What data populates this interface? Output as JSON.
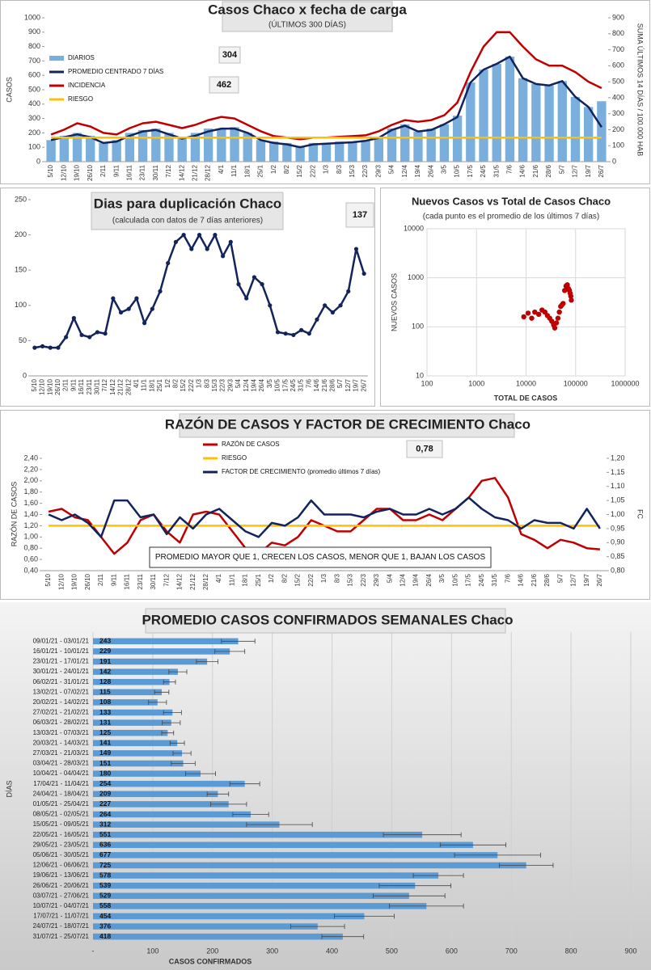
{
  "chart_data": [
    {
      "type": "combo",
      "title": "Casos  Chaco  x fecha de carga",
      "subtitle": "(ÚLTIMOS 300 DÍAS)",
      "ylabel": "CASOS",
      "y2label": "SUMA  ÚLTIMOS 14 DÍAS / 100.000 HAB",
      "categories": [
        "5/10",
        "12/10",
        "19/10",
        "26/10",
        "2/11",
        "9/11",
        "16/11",
        "23/11",
        "30/11",
        "7/12",
        "14/12",
        "21/12",
        "28/12",
        "4/1",
        "11/1",
        "18/1",
        "25/1",
        "1/2",
        "8/2",
        "15/2",
        "22/2",
        "1/3",
        "8/3",
        "15/3",
        "22/3",
        "29/3",
        "5/4",
        "12/4",
        "19/4",
        "26/4",
        "3/5",
        "10/5",
        "17/5",
        "24/5",
        "31/5",
        "7/6",
        "14/6",
        "21/6",
        "28/6",
        "5/7",
        "12/7",
        "19/7",
        "26/7"
      ],
      "series": [
        {
          "name": "DIARIOS",
          "kind": "bar",
          "color": "#7aaedc",
          "values": [
            150,
            180,
            200,
            180,
            130,
            150,
            200,
            220,
            230,
            200,
            170,
            200,
            230,
            230,
            240,
            200,
            150,
            140,
            130,
            110,
            130,
            130,
            140,
            140,
            150,
            170,
            230,
            260,
            210,
            230,
            260,
            320,
            550,
            640,
            680,
            730,
            580,
            540,
            530,
            560,
            450,
            380,
            420
          ]
        },
        {
          "name": "PROMEDIO CENTRADO 7 DÍAS",
          "kind": "line",
          "color": "#13235b",
          "values": [
            150,
            170,
            190,
            170,
            130,
            140,
            180,
            210,
            220,
            190,
            160,
            180,
            210,
            230,
            230,
            200,
            150,
            130,
            120,
            100,
            120,
            125,
            130,
            135,
            145,
            165,
            220,
            250,
            210,
            220,
            260,
            310,
            550,
            640,
            680,
            730,
            580,
            540,
            530,
            560,
            450,
            380,
            240
          ]
        },
        {
          "name": "INCIDENCIA",
          "kind": "line",
          "axis": "y2",
          "color": "#c00000",
          "values": [
            170,
            200,
            240,
            220,
            180,
            170,
            210,
            240,
            250,
            230,
            210,
            230,
            260,
            280,
            270,
            230,
            190,
            160,
            150,
            140,
            150,
            150,
            155,
            160,
            165,
            190,
            230,
            260,
            250,
            260,
            290,
            370,
            560,
            720,
            810,
            810,
            720,
            640,
            600,
            600,
            560,
            500,
            460
          ]
        },
        {
          "name": "RIESGO",
          "kind": "line",
          "axis": "y2",
          "color": "#ffc000",
          "values": [
            150,
            150,
            150,
            150,
            150,
            150,
            150,
            150,
            150,
            150,
            150,
            150,
            150,
            150,
            150,
            150,
            150,
            150,
            150,
            150,
            150,
            150,
            150,
            150,
            150,
            150,
            150,
            150,
            150,
            150,
            150,
            150,
            150,
            150,
            150,
            150,
            150,
            150,
            150,
            150,
            150,
            150,
            150
          ]
        }
      ],
      "ylim": [
        0,
        1000
      ],
      "yticks": [
        0,
        100,
        200,
        300,
        400,
        500,
        600,
        700,
        800,
        900,
        1000
      ],
      "y2lim": [
        0,
        900
      ],
      "y2ticks": [
        0,
        100,
        200,
        300,
        400,
        500,
        600,
        700,
        800,
        900
      ],
      "legend": "upper left",
      "annotations": [
        "304",
        "462"
      ]
    },
    {
      "type": "line",
      "title": "Dias para duplicación Chaco",
      "subtitle": "(calculada con datos de 7 días anteriores)",
      "categories": [
        "5/10",
        "12/10",
        "19/10",
        "26/10",
        "2/11",
        "9/11",
        "16/11",
        "23/11",
        "30/11",
        "7/12",
        "14/12",
        "21/12",
        "28/12",
        "4/1",
        "11/1",
        "18/1",
        "25/1",
        "1/2",
        "8/2",
        "15/2",
        "22/2",
        "1/3",
        "8/3",
        "15/3",
        "22/3",
        "29/3",
        "5/4",
        "12/4",
        "19/4",
        "26/4",
        "3/5",
        "10/5",
        "17/5",
        "24/5",
        "31/5",
        "7/6",
        "14/6",
        "21/6",
        "28/6",
        "5/7",
        "12/7",
        "19/7",
        "26/7"
      ],
      "series": [
        {
          "color": "#13235b",
          "values": [
            40,
            42,
            40,
            40,
            55,
            82,
            58,
            55,
            62,
            60,
            110,
            90,
            95,
            110,
            75,
            95,
            120,
            160,
            190,
            200,
            180,
            200,
            180,
            200,
            170,
            190,
            130,
            110,
            140,
            130,
            100,
            62,
            60,
            58,
            65,
            60,
            80,
            100,
            90,
            100,
            120,
            180,
            145
          ]
        }
      ],
      "ylim": [
        0,
        250
      ],
      "yticks": [
        0,
        50,
        100,
        150,
        200,
        250
      ],
      "markers": true,
      "annotations": [
        "137"
      ]
    },
    {
      "type": "scatter",
      "title": "Nuevos Casos vs Total de Casos Chaco",
      "subtitle": "(cada punto es el promedio de los últimos 7 días)",
      "xlabel": "TOTAL DE CASOS",
      "ylabel": "NUEVOS  CASOS",
      "xscale": "log",
      "yscale": "log",
      "grid": true,
      "color": "#c00000",
      "x": [
        9000,
        11000,
        13000,
        15000,
        18000,
        21000,
        24000,
        27000,
        30000,
        33000,
        36000,
        38000,
        41000,
        44000,
        47000,
        50000,
        53000,
        56000,
        60000,
        64000,
        68000,
        72000,
        75000,
        78000,
        80000,
        82000
      ],
      "values": [
        160,
        190,
        150,
        200,
        180,
        220,
        200,
        170,
        150,
        130,
        110,
        95,
        120,
        150,
        200,
        260,
        280,
        300,
        550,
        680,
        720,
        600,
        550,
        480,
        420,
        350
      ],
      "xlim": [
        100,
        1000000
      ],
      "xticks": [
        100,
        1000,
        10000,
        100000,
        1000000
      ],
      "ylim": [
        10,
        10000
      ],
      "yticks": [
        10,
        100,
        1000,
        10000
      ]
    },
    {
      "type": "line",
      "title": "RAZÓN DE CASOS Y FACTOR DE CRECIMIENTO Chaco",
      "ylabel": "RAZÓN DE CASOS",
      "y2label": "FC",
      "note": "PROMEDIO MAYOR QUE 1, CRECEN LOS CASOS, MENOR QUE 1, BAJAN LOS CASOS",
      "categories": [
        "5/10",
        "12/10",
        "19/10",
        "26/10",
        "2/11",
        "9/11",
        "16/11",
        "23/11",
        "30/11",
        "7/12",
        "14/12",
        "21/12",
        "28/12",
        "4/1",
        "11/1",
        "18/1",
        "25/1",
        "1/2",
        "8/2",
        "15/2",
        "22/2",
        "1/3",
        "8/3",
        "15/3",
        "22/3",
        "29/3",
        "5/4",
        "12/4",
        "19/4",
        "26/4",
        "3/5",
        "10/5",
        "17/5",
        "24/5",
        "31/5",
        "7/6",
        "14/6",
        "21/6",
        "28/6",
        "5/7",
        "12/7",
        "19/7",
        "26/7"
      ],
      "series": [
        {
          "name": "RAZÓN DE CASOS",
          "color": "#c00000",
          "values": [
            1.45,
            1.5,
            1.35,
            1.3,
            1.0,
            0.7,
            0.9,
            1.3,
            1.4,
            1.1,
            0.9,
            1.4,
            1.45,
            1.4,
            1.1,
            0.8,
            0.7,
            0.9,
            0.85,
            1.0,
            1.3,
            1.2,
            1.1,
            1.1,
            1.3,
            1.5,
            1.5,
            1.3,
            1.3,
            1.4,
            1.3,
            1.5,
            1.7,
            2.0,
            2.05,
            1.7,
            1.05,
            0.95,
            0.8,
            0.95,
            0.9,
            0.8,
            0.78
          ]
        },
        {
          "name": "RIESGO",
          "color": "#ffc000",
          "values": [
            1.2,
            1.2,
            1.2,
            1.2,
            1.2,
            1.2,
            1.2,
            1.2,
            1.2,
            1.2,
            1.2,
            1.2,
            1.2,
            1.2,
            1.2,
            1.2,
            1.2,
            1.2,
            1.2,
            1.2,
            1.2,
            1.2,
            1.2,
            1.2,
            1.2,
            1.2,
            1.2,
            1.2,
            1.2,
            1.2,
            1.2,
            1.2,
            1.2,
            1.2,
            1.2,
            1.2,
            1.2,
            1.2,
            1.2,
            1.2,
            1.2,
            1.2,
            1.2
          ]
        },
        {
          "name": "FACTOR DE CRECIMIENTO (promedio últimos 7 días)",
          "axis": "y2",
          "color": "#13235b",
          "values": [
            1.0,
            0.98,
            1.0,
            0.97,
            0.92,
            1.05,
            1.05,
            0.99,
            1.0,
            0.93,
            0.99,
            0.95,
            1.0,
            1.02,
            0.98,
            0.94,
            0.92,
            0.97,
            0.96,
            0.99,
            1.05,
            1.0,
            1.0,
            1.0,
            0.99,
            1.01,
            1.02,
            1.0,
            1.0,
            1.02,
            1.0,
            1.02,
            1.06,
            1.02,
            0.99,
            0.98,
            0.95,
            0.98,
            0.97,
            0.97,
            0.95,
            1.02,
            0.95
          ]
        }
      ],
      "ylim": [
        0.4,
        2.4
      ],
      "yticks": [
        {
          "value": 0.4,
          "label": "0,40"
        },
        {
          "value": 0.6,
          "label": "0,60"
        },
        {
          "value": 0.8,
          "label": "0,80"
        },
        {
          "value": 1.0,
          "label": "1,00"
        },
        {
          "value": 1.2,
          "label": "1,20"
        },
        {
          "value": 1.4,
          "label": "1,40"
        },
        {
          "value": 1.6,
          "label": "1,60"
        },
        {
          "value": 1.8,
          "label": "1,80"
        },
        {
          "value": 2.0,
          "label": "2,00"
        },
        {
          "value": 2.2,
          "label": "2,20"
        },
        {
          "value": 2.4,
          "label": "2,40"
        }
      ],
      "y2lim": [
        0.8,
        1.2
      ],
      "y2ticks": [
        {
          "value": 0.8,
          "label": "0,80"
        },
        {
          "value": 0.85,
          "label": "0,85"
        },
        {
          "value": 0.9,
          "label": "0,90"
        },
        {
          "value": 0.95,
          "label": "0,95"
        },
        {
          "value": 1.0,
          "label": "1,00"
        },
        {
          "value": 1.05,
          "label": "1,05"
        },
        {
          "value": 1.1,
          "label": "1,10"
        },
        {
          "value": 1.15,
          "label": "1,15"
        },
        {
          "value": 1.2,
          "label": "1,20"
        }
      ],
      "legend": "upper center",
      "annotations": [
        "0,78"
      ]
    },
    {
      "type": "hbar",
      "title": "PROMEDIO CASOS CONFIRMADOS SEMANALES Chaco",
      "ylabel": "DÍAS",
      "xlabel": "CASOS CONFIRMADOS",
      "color": "#5b9bd5",
      "grid": true,
      "categories": [
        "09/01/21 - 03/01/21",
        "16/01/21 - 10/01/21",
        "23/01/21 - 17/01/21",
        "30/01/21 - 24/01/21",
        "06/02/21 - 31/01/21",
        "13/02/21 - 07/02/21",
        "20/02/21 - 14/02/21",
        "27/02/21 - 21/02/21",
        "06/03/21 - 28/02/21",
        "13/03/21 - 07/03/21",
        "20/03/21 - 14/03/21",
        "27/03/21 - 21/03/21",
        "03/04/21 - 28/03/21",
        "10/04/21 - 04/04/21",
        "17/04/21 - 11/04/21",
        "24/04/21 - 18/04/21",
        "01/05/21 - 25/04/21",
        "08/05/21 - 02/05/21",
        "15/05/21 - 09/05/21",
        "22/05/21 - 16/05/21",
        "29/05/21 - 23/05/21",
        "05/06/21 - 30/05/21",
        "12/06/21 - 06/06/21",
        "19/06/21 - 13/06/21",
        "26/06/21 - 20/06/21",
        "03/07/21 - 27/06/21",
        "10/07/21 - 04/07/21",
        "17/07/21 - 11/07/21",
        "24/07/21 - 18/07/21",
        "31/07/21 - 25/07/21"
      ],
      "values": [
        243,
        229,
        191,
        142,
        128,
        115,
        108,
        133,
        131,
        125,
        141,
        149,
        151,
        180,
        254,
        209,
        227,
        264,
        312,
        551,
        636,
        677,
        725,
        578,
        539,
        529,
        558,
        454,
        376,
        418
      ],
      "errors": [
        28,
        25,
        18,
        15,
        10,
        12,
        15,
        15,
        15,
        10,
        12,
        15,
        20,
        25,
        25,
        18,
        30,
        30,
        55,
        65,
        55,
        72,
        45,
        42,
        60,
        60,
        62,
        50,
        45,
        35
      ],
      "xlim": [
        0,
        900
      ],
      "xticks": [
        {
          "value": 0,
          "label": "-"
        },
        100,
        200,
        300,
        400,
        500,
        600,
        700,
        800,
        900
      ]
    }
  ]
}
